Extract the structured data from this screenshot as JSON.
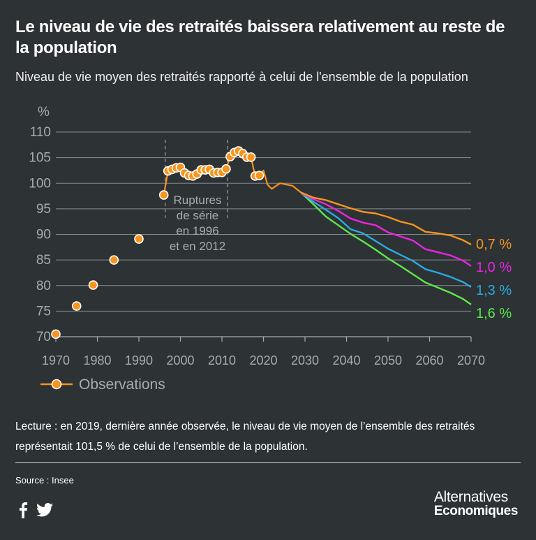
{
  "title": "Le niveau de vie des retraités baissera relativement au reste de la population",
  "subtitle": "Niveau de vie moyen des retraités rapporté à celui de l'ensemble de la population",
  "reading_note": "Lecture : en 2019, dernière année observée, le niveau de vie moyen de l’ensemble des retraités représentait 101,5 % de celui de l’ensemble de la population.",
  "source": "Source : Insee",
  "brand": {
    "line1": "Alternatives",
    "line2": "Economiques"
  },
  "social": [
    "facebook-icon",
    "twitter-icon"
  ],
  "chart_data": {
    "type": "line",
    "ylabel": "%",
    "xlim": [
      1970,
      2070
    ],
    "ylim": [
      70,
      110
    ],
    "x_ticks": [
      1970,
      1980,
      1990,
      2000,
      2010,
      2020,
      2030,
      2040,
      2050,
      2060,
      2070
    ],
    "y_ticks": [
      70,
      75,
      80,
      85,
      90,
      95,
      100,
      105,
      110
    ],
    "grid": "horizontal",
    "legend": {
      "position": "bottom-left",
      "label": "Observations"
    },
    "annotation": {
      "lines": [
        "Ruptures",
        "de série",
        "en 1996",
        "et en 2012"
      ],
      "break_years": [
        1996.5,
        2011.5
      ]
    },
    "observations": {
      "name": "Observations",
      "color": "#f7941d",
      "points": [
        [
          1970,
          70.5
        ],
        [
          1975,
          76
        ],
        [
          1979,
          80.1
        ],
        [
          1984,
          85
        ],
        [
          1990,
          89.1
        ],
        [
          1996,
          97.7
        ],
        [
          1997,
          102.4
        ],
        [
          1998,
          102.7
        ],
        [
          1999,
          103
        ],
        [
          2000,
          103.1
        ],
        [
          2001,
          102
        ],
        [
          2002,
          101.5
        ],
        [
          2003,
          101.4
        ],
        [
          2004,
          101.8
        ],
        [
          2005,
          102.6
        ],
        [
          2006,
          102.6
        ],
        [
          2007,
          102.7
        ],
        [
          2008,
          102
        ],
        [
          2009,
          102.1
        ],
        [
          2010,
          102.1
        ],
        [
          2011,
          102.8
        ],
        [
          2012,
          105.2
        ],
        [
          2013,
          106
        ],
        [
          2014,
          106.3
        ],
        [
          2015,
          105.8
        ],
        [
          2016,
          105.1
        ],
        [
          2017,
          105.1
        ],
        [
          2018,
          101.4
        ],
        [
          2019,
          101.5
        ]
      ],
      "line_tail": [
        [
          2020,
          102.5
        ],
        [
          2021,
          99.7
        ],
        [
          2022,
          98.9
        ],
        [
          2024,
          100
        ],
        [
          2027,
          99.5
        ],
        [
          2029,
          98.2
        ]
      ]
    },
    "series": [
      {
        "name": "0,7 %",
        "color": "#f7941d",
        "x": [
          2029,
          2032,
          2035,
          2038,
          2041,
          2044,
          2047,
          2050,
          2053,
          2056,
          2059,
          2062,
          2065,
          2068,
          2070
        ],
        "values": [
          98.2,
          97.2,
          96.7,
          95.9,
          95.1,
          94.4,
          94.1,
          93.4,
          92.5,
          91.9,
          90.5,
          90.2,
          89.8,
          88.9,
          88.0
        ]
      },
      {
        "name": "1,0 %",
        "color": "#ec24e4",
        "x": [
          2029,
          2032,
          2035,
          2038,
          2041,
          2044,
          2047,
          2050,
          2053,
          2056,
          2059,
          2062,
          2065,
          2068,
          2070
        ],
        "values": [
          98.2,
          96.9,
          95.9,
          94.6,
          93.1,
          92.3,
          91.8,
          90.4,
          89.6,
          88.8,
          87.1,
          86.5,
          85.9,
          84.9,
          83.8
        ]
      },
      {
        "name": "1,3 %",
        "color": "#29abe2",
        "x": [
          2029,
          2032,
          2035,
          2038,
          2041,
          2044,
          2047,
          2050,
          2053,
          2056,
          2059,
          2062,
          2065,
          2068,
          2070
        ],
        "values": [
          98.2,
          96.4,
          94.8,
          93.2,
          91.0,
          90.2,
          88.7,
          87.2,
          86.0,
          84.8,
          83.2,
          82.5,
          81.7,
          80.7,
          79.7
        ]
      },
      {
        "name": "1,6 %",
        "color": "#5ee84a",
        "x": [
          2029,
          2032,
          2035,
          2038,
          2041,
          2044,
          2047,
          2050,
          2053,
          2056,
          2059,
          2062,
          2065,
          2068,
          2070
        ],
        "values": [
          98.2,
          95.9,
          93.5,
          91.8,
          90.1,
          88.6,
          87.0,
          85.3,
          83.8,
          82.2,
          80.6,
          79.6,
          78.6,
          77.4,
          76.3
        ]
      }
    ]
  }
}
